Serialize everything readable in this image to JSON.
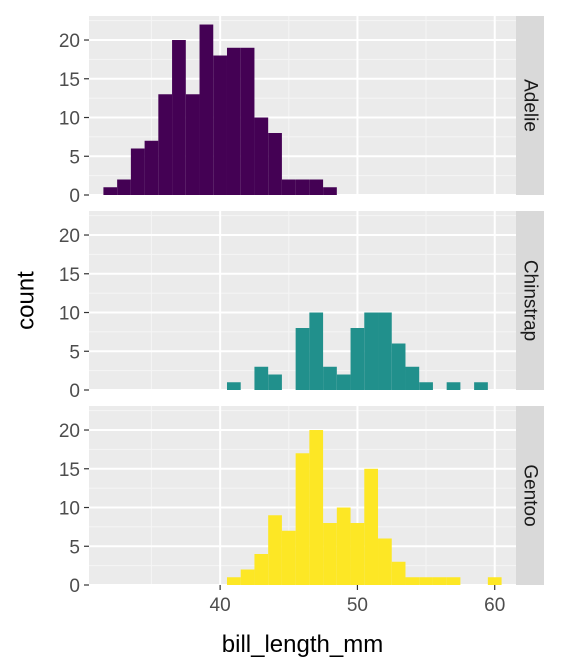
{
  "chart_data": {
    "type": "bar",
    "xlabel": "bill_length_mm",
    "ylabel": "count",
    "xlim": [
      30.45,
      61.55
    ],
    "ylim": [
      0,
      23.1
    ],
    "x_ticks": [
      40,
      50,
      60
    ],
    "y_ticks": [
      0,
      5,
      10,
      15,
      20
    ],
    "bin_width": 1,
    "bin_start": 31.5,
    "grid": true,
    "legend": "none",
    "panels": [
      {
        "label": "Adelie",
        "color": "#440154",
        "values": [
          1,
          2,
          6,
          7,
          13,
          20,
          13,
          22,
          18,
          19,
          19,
          10,
          8,
          2,
          2,
          2,
          1,
          0,
          0,
          0,
          0,
          0,
          0,
          0,
          0,
          0,
          0,
          0,
          0
        ]
      },
      {
        "label": "Chinstrap",
        "color": "#21908C",
        "values": [
          0,
          0,
          0,
          0,
          0,
          0,
          0,
          0,
          0,
          1,
          0,
          3,
          2,
          0,
          8,
          10,
          3,
          2,
          8,
          10,
          10,
          6,
          3,
          1,
          0,
          1,
          0,
          1,
          0
        ]
      },
      {
        "label": "Gentoo",
        "color": "#FDE725",
        "values": [
          0,
          0,
          0,
          0,
          0,
          0,
          0,
          0,
          0,
          1,
          2,
          4,
          9,
          7,
          17,
          20,
          8,
          10,
          8,
          15,
          6,
          3,
          1,
          1,
          1,
          1,
          0,
          0,
          1
        ]
      }
    ]
  }
}
